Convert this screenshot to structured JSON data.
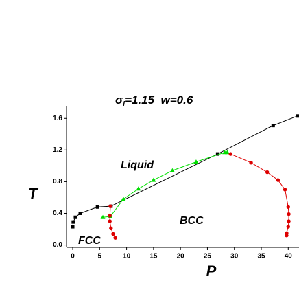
{
  "chart_data": {
    "type": "line",
    "title_symbol": "σ",
    "title_subscript": "I",
    "title_rest": "=1.15  w=0.6",
    "x_label": "P",
    "y_label": "T",
    "annotations": [
      "Liquid",
      "BCC",
      "FCC"
    ],
    "xlim": [
      -1.15,
      42
    ],
    "ylim": [
      -0.03,
      1.75
    ],
    "xticks": [
      0,
      5,
      10,
      15,
      20,
      25,
      30,
      35,
      40
    ],
    "yticks": [
      {
        "value": 0,
        "label": "0.0"
      },
      0.4,
      0.8,
      1.2,
      1.6
    ],
    "grid": false,
    "series": [
      {
        "color": "#000000",
        "marker": "square",
        "x": [
          0,
          0.1,
          0.5,
          1.4,
          4.6,
          7.1,
          26.9,
          37.2,
          41.7
        ],
        "values": [
          0.23,
          0.29,
          0.35,
          0.4,
          0.48,
          0.49,
          1.15,
          1.51,
          1.63
        ]
      },
      {
        "color": "#00dd00",
        "marker": "triangle",
        "x": [
          5.6,
          7.0,
          9.4,
          12.2,
          15.0,
          18.5,
          22.9,
          28.2,
          28.7
        ],
        "values": [
          0.35,
          0.36,
          0.58,
          0.71,
          0.82,
          0.94,
          1.05,
          1.17,
          1.17
        ]
      },
      {
        "color": "#dd0000",
        "marker": "circle",
        "x": [
          7.0,
          6.9,
          6.9,
          7.1,
          7.5,
          7.9,
          null,
          29.3,
          33.1,
          36.1,
          38.1,
          39.4,
          40.0,
          40.1,
          40.1,
          40.0,
          39.7,
          39.7
        ],
        "values": [
          0.49,
          0.37,
          0.3,
          0.21,
          0.14,
          0.09,
          null,
          1.15,
          1.04,
          0.92,
          0.82,
          0.7,
          0.48,
          0.39,
          0.3,
          0.23,
          0.15,
          0.12
        ]
      }
    ]
  }
}
